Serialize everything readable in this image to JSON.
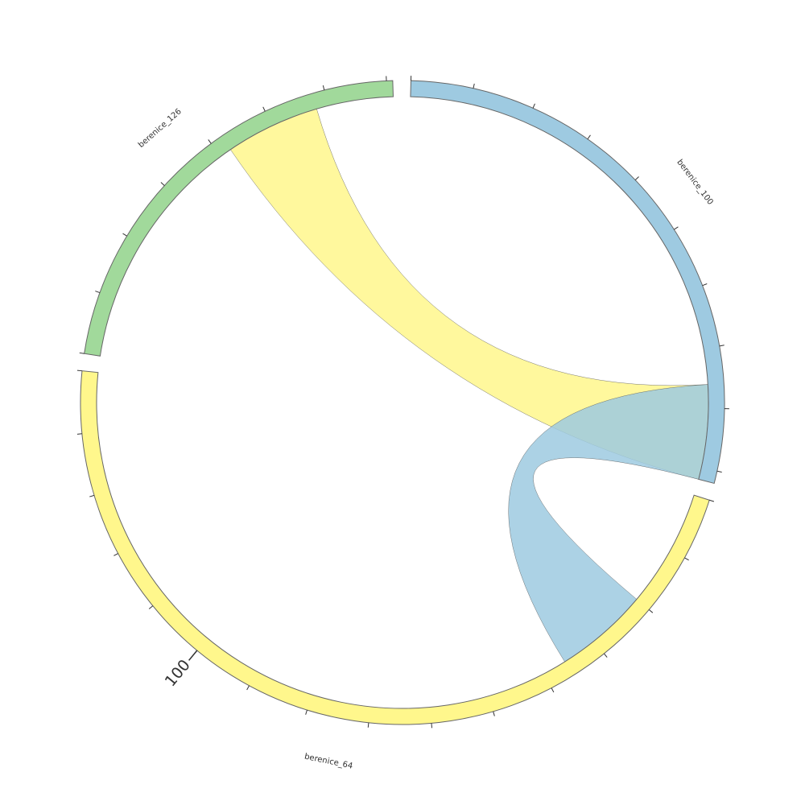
{
  "chart_data": {
    "type": "chord",
    "groups": [
      {
        "name": "berenice_100",
        "color": "#9ecae1",
        "size": 92,
        "ticks": [
          0,
          10,
          20,
          30,
          40,
          50,
          60,
          70,
          80,
          90
        ],
        "tick_labels": []
      },
      {
        "name": "berenice_64",
        "color": "#fff78c",
        "size": 150,
        "ticks": [
          0,
          10,
          20,
          30,
          40,
          50,
          60,
          70,
          80,
          90,
          100,
          110,
          120,
          130,
          140,
          150
        ],
        "tick_labels": [
          100
        ]
      },
      {
        "name": "berenice_126",
        "color": "#a1d99b",
        "size": 71,
        "ticks": [
          0,
          10,
          20,
          30,
          40,
          50,
          60,
          70
        ],
        "tick_labels": []
      }
    ],
    "chords": [
      {
        "source": "berenice_126",
        "target": "berenice_100",
        "source_range": [
          42,
          58
        ],
        "target_range": [
          76,
          92
        ],
        "color": "#fff78c"
      },
      {
        "source": "berenice_64",
        "target": "berenice_100",
        "source_range": [
          20,
          36
        ],
        "target_range": [
          76,
          92
        ],
        "color": "#9ecae1"
      }
    ]
  }
}
